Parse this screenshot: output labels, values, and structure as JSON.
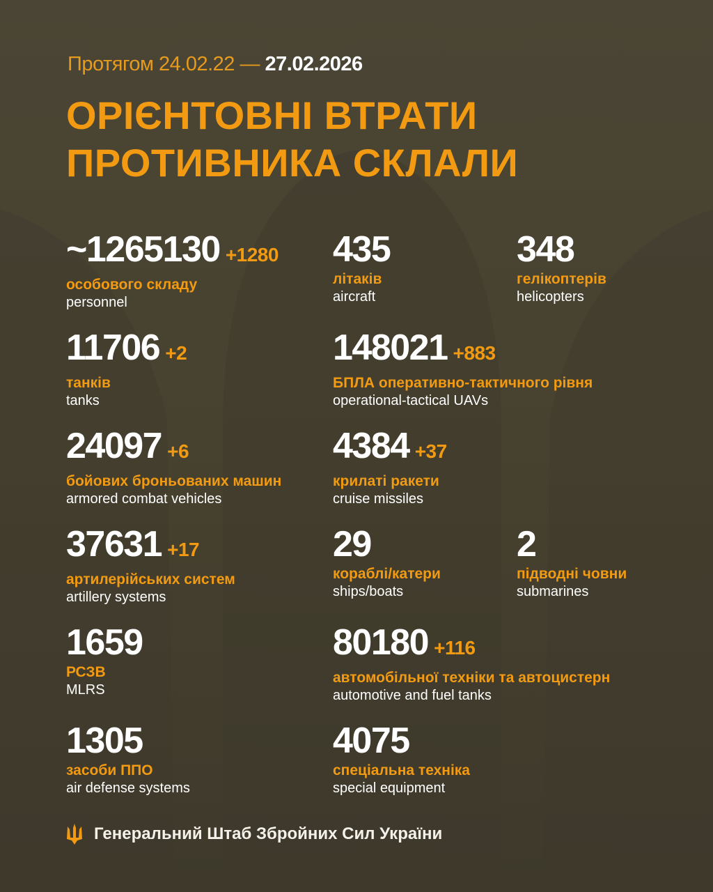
{
  "header": {
    "period_prefix": "Протягом 24.02.22 —",
    "period_end": "27.02.2026",
    "title_line1": "ОРІЄНТОВНІ ВТРАТИ",
    "title_line2": "ПРОТИВНИКА СКЛАЛИ"
  },
  "colors": {
    "accent": "#f29b12",
    "background": "#4b4535",
    "text": "#ffffff"
  },
  "stats": [
    {
      "value": "~1265130",
      "delta": "+1280",
      "ua": "особового складу",
      "en": "personnel"
    },
    {
      "value": "435",
      "delta": "",
      "ua": "літаків",
      "en": "aircraft"
    },
    {
      "value": "348",
      "delta": "",
      "ua": "гелікоптерів",
      "en": "helicopters"
    },
    {
      "value": "11706",
      "delta": "+2",
      "ua": "танків",
      "en": "tanks"
    },
    {
      "value": "148021",
      "delta": "+883",
      "ua": "БПЛА оперативно-тактичного рівня",
      "en": "operational-tactical UAVs"
    },
    {
      "value": "24097",
      "delta": "+6",
      "ua": "бойових броньованих машин",
      "en": "armored combat vehicles"
    },
    {
      "value": "4384",
      "delta": "+37",
      "ua": "крилаті ракети",
      "en": "cruise missiles"
    },
    {
      "value": "37631",
      "delta": "+17",
      "ua": "артилерійських систем",
      "en": "artillery systems"
    },
    {
      "value": "29",
      "delta": "",
      "ua": "кораблі/катери",
      "en": "ships/boats"
    },
    {
      "value": "2",
      "delta": "",
      "ua": "підводні човни",
      "en": "submarines"
    },
    {
      "value": "1659",
      "delta": "",
      "ua": "РСЗВ",
      "en": "MLRS"
    },
    {
      "value": "80180",
      "delta": "+116",
      "ua": "автомобільної техніки та автоцистерн",
      "en": "automotive and fuel tanks"
    },
    {
      "value": "1305",
      "delta": "",
      "ua": "засоби ППО",
      "en": "air defense systems"
    },
    {
      "value": "4075",
      "delta": "",
      "ua": "спеціальна техніка",
      "en": "special equipment"
    }
  ],
  "footer": {
    "icon": "trident-icon",
    "text": "Генеральний Штаб Збройних Сил України"
  }
}
